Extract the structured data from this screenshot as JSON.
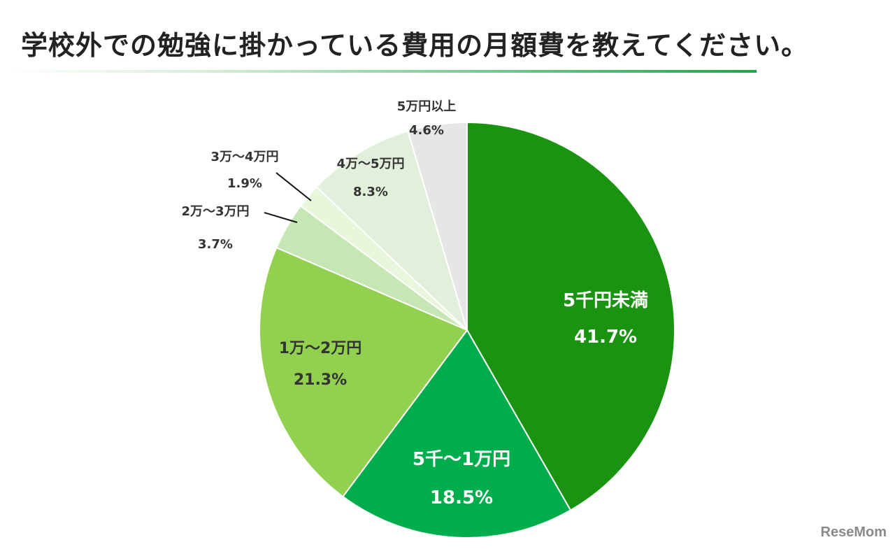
{
  "title": "学校外での勉強に掛かっている費用の月額費を教えてください。",
  "watermark": "ReseMom",
  "chart_data": {
    "type": "pie",
    "title": "学校外での勉強に掛かっている費用の月額費を教えてください。",
    "start": "12 o'clock, clockwise",
    "slices": [
      {
        "label": "5千円未満",
        "value": 41.7,
        "pct_text": "41.7%",
        "color": "#1a9410",
        "text_color": "#ffffff"
      },
      {
        "label": "5千～1万円",
        "value": 18.5,
        "pct_text": "18.5%",
        "color": "#00ad4d",
        "text_color": "#ffffff"
      },
      {
        "label": "1万～2万円",
        "value": 21.3,
        "pct_text": "21.3%",
        "color": "#92d050",
        "text_color": "#333333"
      },
      {
        "label": "2万～3万円",
        "value": 3.7,
        "pct_text": "3.7%",
        "color": "#c6e6b3",
        "text_color": "#333333"
      },
      {
        "label": "3万～4万円",
        "value": 1.9,
        "pct_text": "1.9%",
        "color": "#e8f7dc",
        "text_color": "#333333"
      },
      {
        "label": "4万～5万円",
        "value": 8.3,
        "pct_text": "8.3%",
        "color": "#e2efda",
        "text_color": "#333333"
      },
      {
        "label": "5万円以上",
        "value": 4.6,
        "pct_text": "4.6%",
        "color": "#e6e6e6",
        "text_color": "#333333"
      }
    ]
  }
}
